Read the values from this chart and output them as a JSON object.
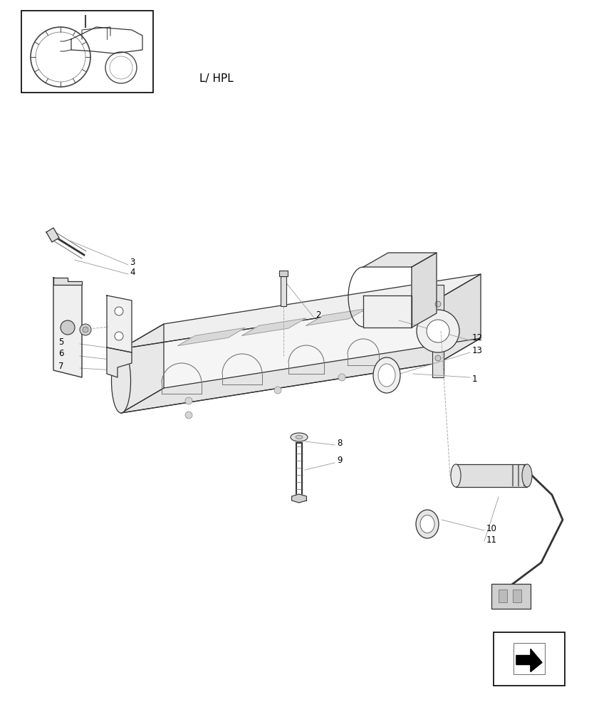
{
  "background_color": "#ffffff",
  "page_width": 8.28,
  "page_height": 10.0,
  "line_color": "#aaaaaa",
  "draw_color": "#333333"
}
